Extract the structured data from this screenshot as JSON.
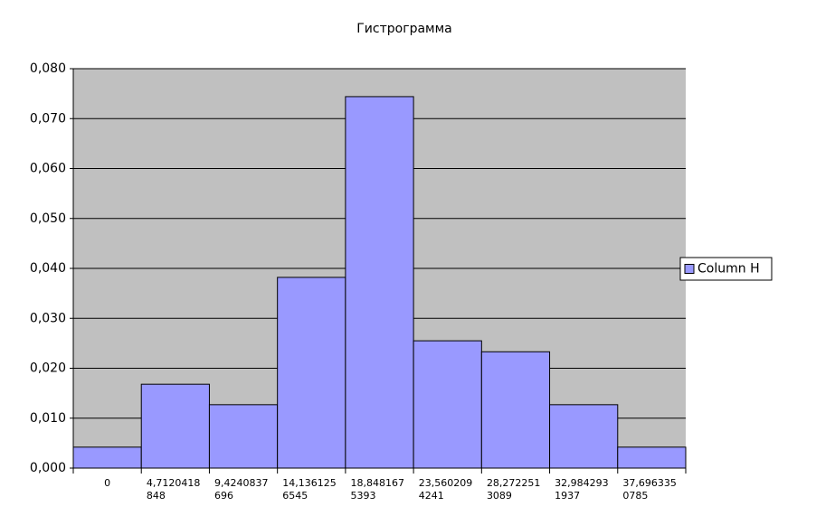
{
  "chart_data": {
    "type": "bar",
    "title": "Гистрограмма",
    "categories": [
      "0",
      "4,7120418848",
      "9,4240837696",
      "14,1361256545",
      "18,8481675393",
      "23,5602094241",
      "28,2722513089",
      "32,9842931937",
      "37,6963350785"
    ],
    "series": [
      {
        "name": "Column H",
        "color": "#9999ff",
        "values": [
          0.0042,
          0.0168,
          0.0127,
          0.0382,
          0.0744,
          0.0255,
          0.0233,
          0.0127,
          0.0042
        ]
      }
    ],
    "ylim": [
      0,
      0.08
    ],
    "yticks": [
      {
        "value": 0,
        "label": "0,000"
      },
      {
        "value": 0.01,
        "label": "0,010"
      },
      {
        "value": 0.02,
        "label": "0,020"
      },
      {
        "value": 0.03,
        "label": "0,030"
      },
      {
        "value": 0.04,
        "label": "0,040"
      },
      {
        "value": 0.05,
        "label": "0,050"
      },
      {
        "value": 0.06,
        "label": "0,060"
      },
      {
        "value": 0.07,
        "label": "0,070"
      },
      {
        "value": 0.08,
        "label": "0,080"
      }
    ],
    "grid": true,
    "legend": "right"
  }
}
